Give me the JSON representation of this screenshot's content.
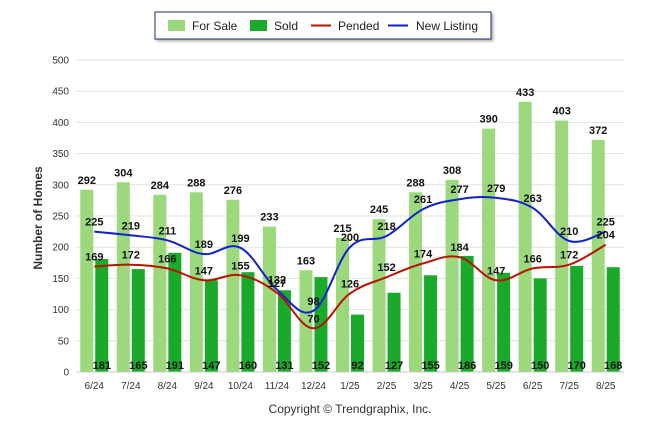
{
  "chart_data": {
    "type": "bar",
    "categories": [
      "6/24",
      "7/24",
      "8/24",
      "9/24",
      "10/24",
      "11/24",
      "12/24",
      "1/25",
      "2/25",
      "3/25",
      "4/25",
      "5/25",
      "6/25",
      "7/25",
      "8/25"
    ],
    "series": [
      {
        "name": "For Sale",
        "kind": "bar",
        "color": "#9bd97c",
        "values": [
          292,
          304,
          284,
          288,
          276,
          233,
          163,
          215,
          245,
          288,
          308,
          390,
          433,
          403,
          372
        ]
      },
      {
        "name": "Sold",
        "kind": "bar",
        "color": "#1aaa2a",
        "values": [
          181,
          165,
          191,
          147,
          160,
          131,
          152,
          92,
          127,
          155,
          186,
          159,
          150,
          170,
          168
        ]
      },
      {
        "name": "Pended",
        "kind": "line",
        "color": "#bb1100",
        "values": [
          169,
          172,
          166,
          147,
          155,
          127,
          70,
          126,
          152,
          174,
          184,
          147,
          166,
          172,
          204
        ]
      },
      {
        "name": "New Listing",
        "kind": "line",
        "color": "#1122cc",
        "values": [
          225,
          219,
          211,
          189,
          199,
          132,
          98,
          200,
          218,
          261,
          277,
          279,
          263,
          210,
          225
        ]
      }
    ],
    "ylabel": "Number of Homes",
    "xlabel": "",
    "ylim": [
      0,
      500
    ],
    "yticks": [
      0,
      50,
      100,
      150,
      200,
      250,
      300,
      350,
      400,
      450,
      500
    ],
    "grid": true,
    "legend_position": "top-center",
    "copyright": "Copyright © Trendgraphix, Inc."
  }
}
